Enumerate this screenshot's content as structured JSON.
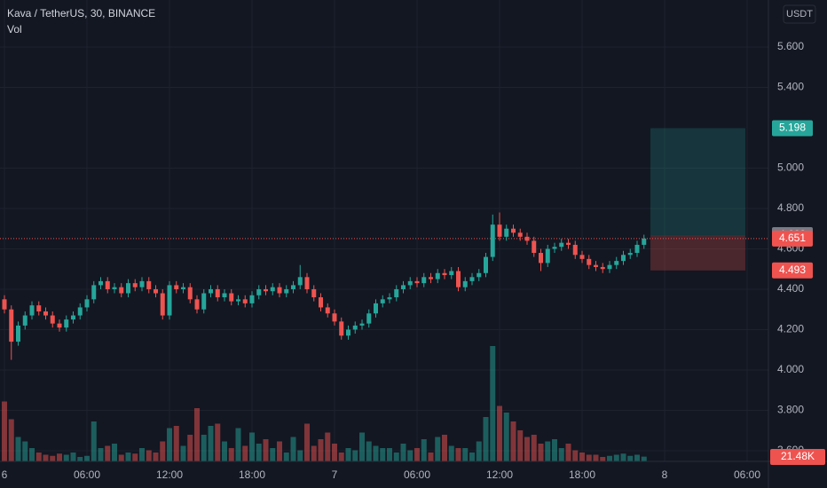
{
  "chart_data": {
    "type": "candlestick",
    "title": "Kava / TetherUS, 30, BINANCE",
    "indicator": "Vol",
    "currency": "USDT",
    "up_color": "#26a69a",
    "down_color": "#ef5350",
    "ylim": [
      3.547,
      5.833
    ],
    "yticks": [
      {
        "value": 3.6,
        "label": "3.600"
      },
      {
        "value": 3.8,
        "label": "3.800"
      },
      {
        "value": 4.0,
        "label": "4.000"
      },
      {
        "value": 4.2,
        "label": "4.200"
      },
      {
        "value": 4.4,
        "label": "4.400"
      },
      {
        "value": 4.6,
        "label": "4.600"
      },
      {
        "value": 4.8,
        "label": "4.800"
      },
      {
        "value": 5.0,
        "label": "5.000"
      },
      {
        "value": 5.4,
        "label": "5.400"
      },
      {
        "value": 5.6,
        "label": "5.600"
      }
    ],
    "xtick_labels": [
      "6",
      "06:00",
      "12:00",
      "18:00",
      "7",
      "06:00",
      "12:00",
      "18:00",
      "8",
      "06:00"
    ],
    "grid": true,
    "open": [
      4.35,
      4.3,
      4.14,
      4.22,
      4.27,
      4.32,
      4.29,
      4.27,
      4.23,
      4.21,
      4.25,
      4.27,
      4.31,
      4.35,
      4.42,
      4.44,
      4.4,
      4.41,
      4.38,
      4.43,
      4.41,
      4.44,
      4.4,
      4.38,
      4.27,
      4.42,
      4.4,
      4.41,
      4.35,
      4.3,
      4.38,
      4.4,
      4.36,
      4.38,
      4.34,
      4.35,
      4.33,
      4.37,
      4.4,
      4.39,
      4.41,
      4.38,
      4.4,
      4.42,
      4.46,
      4.4,
      4.36,
      4.31,
      4.28,
      4.24,
      4.17,
      4.2,
      4.22,
      4.23,
      4.28,
      4.33,
      4.35,
      4.36,
      4.4,
      4.42,
      4.44,
      4.43,
      4.46,
      4.45,
      4.48,
      4.47,
      4.49,
      4.41,
      4.44,
      4.46,
      4.48,
      4.56,
      4.72,
      4.66,
      4.7,
      4.68,
      4.66,
      4.64,
      4.58,
      4.53,
      4.6,
      4.61,
      4.63,
      4.62,
      4.57,
      4.55,
      4.52,
      4.51,
      4.5,
      4.52,
      4.54,
      4.57,
      4.58,
      4.62
    ],
    "high": [
      4.37,
      4.32,
      4.24,
      4.29,
      4.34,
      4.34,
      4.31,
      4.29,
      4.25,
      4.27,
      4.29,
      4.33,
      4.37,
      4.44,
      4.46,
      4.46,
      4.43,
      4.43,
      4.45,
      4.45,
      4.46,
      4.46,
      4.42,
      4.4,
      4.44,
      4.44,
      4.43,
      4.43,
      4.37,
      4.4,
      4.42,
      4.42,
      4.4,
      4.4,
      4.37,
      4.37,
      4.39,
      4.42,
      4.42,
      4.43,
      4.43,
      4.42,
      4.44,
      4.52,
      4.48,
      4.42,
      4.38,
      4.33,
      4.3,
      4.26,
      4.22,
      4.24,
      4.25,
      4.3,
      4.35,
      4.37,
      4.38,
      4.42,
      4.44,
      4.46,
      4.46,
      4.48,
      4.48,
      4.5,
      4.5,
      4.51,
      4.51,
      4.46,
      4.48,
      4.5,
      4.58,
      4.77,
      4.78,
      4.72,
      4.72,
      4.7,
      4.68,
      4.66,
      4.6,
      4.62,
      4.63,
      4.65,
      4.65,
      4.64,
      4.59,
      4.57,
      4.54,
      4.53,
      4.54,
      4.56,
      4.59,
      4.6,
      4.64,
      4.67
    ],
    "low": [
      4.28,
      4.05,
      4.12,
      4.2,
      4.25,
      4.27,
      4.25,
      4.21,
      4.19,
      4.19,
      4.23,
      4.25,
      4.29,
      4.33,
      4.4,
      4.38,
      4.38,
      4.36,
      4.36,
      4.39,
      4.39,
      4.38,
      4.36,
      4.25,
      4.25,
      4.38,
      4.38,
      4.33,
      4.28,
      4.28,
      4.36,
      4.34,
      4.34,
      4.32,
      4.32,
      4.31,
      4.31,
      4.35,
      4.37,
      4.37,
      4.36,
      4.36,
      4.38,
      4.4,
      4.38,
      4.34,
      4.29,
      4.26,
      4.22,
      4.15,
      4.15,
      4.18,
      4.2,
      4.21,
      4.26,
      4.31,
      4.33,
      4.34,
      4.38,
      4.4,
      4.41,
      4.41,
      4.43,
      4.43,
      4.45,
      4.45,
      4.39,
      4.39,
      4.42,
      4.44,
      4.46,
      4.54,
      4.64,
      4.64,
      4.66,
      4.64,
      4.62,
      4.56,
      4.49,
      4.51,
      4.58,
      4.59,
      4.6,
      4.55,
      4.53,
      4.5,
      4.49,
      4.48,
      4.48,
      4.5,
      4.52,
      4.55,
      4.56,
      4.6
    ],
    "close": [
      4.3,
      4.14,
      4.22,
      4.27,
      4.32,
      4.29,
      4.27,
      4.23,
      4.21,
      4.25,
      4.27,
      4.31,
      4.35,
      4.42,
      4.44,
      4.4,
      4.41,
      4.38,
      4.43,
      4.41,
      4.44,
      4.4,
      4.38,
      4.27,
      4.42,
      4.4,
      4.41,
      4.35,
      4.3,
      4.38,
      4.4,
      4.36,
      4.38,
      4.34,
      4.35,
      4.33,
      4.37,
      4.4,
      4.39,
      4.41,
      4.38,
      4.4,
      4.42,
      4.46,
      4.4,
      4.36,
      4.31,
      4.28,
      4.24,
      4.17,
      4.2,
      4.22,
      4.23,
      4.28,
      4.33,
      4.35,
      4.36,
      4.4,
      4.42,
      4.44,
      4.43,
      4.46,
      4.45,
      4.48,
      4.47,
      4.49,
      4.41,
      4.44,
      4.46,
      4.48,
      4.56,
      4.72,
      4.66,
      4.7,
      4.68,
      4.66,
      4.64,
      4.58,
      4.53,
      4.6,
      4.61,
      4.63,
      4.62,
      4.57,
      4.55,
      4.52,
      4.51,
      4.5,
      4.52,
      4.54,
      4.57,
      4.58,
      4.62,
      4.651
    ],
    "volume": [
      270,
      190,
      110,
      90,
      60,
      40,
      30,
      25,
      35,
      30,
      40,
      20,
      25,
      180,
      60,
      70,
      80,
      30,
      40,
      35,
      60,
      50,
      40,
      90,
      150,
      160,
      70,
      120,
      240,
      120,
      160,
      170,
      90,
      60,
      150,
      70,
      130,
      80,
      100,
      60,
      90,
      40,
      110,
      50,
      170,
      70,
      100,
      130,
      80,
      40,
      60,
      50,
      130,
      90,
      70,
      60,
      60,
      40,
      80,
      50,
      60,
      100,
      40,
      110,
      120,
      70,
      60,
      60,
      40,
      90,
      200,
      520,
      250,
      220,
      180,
      140,
      110,
      120,
      80,
      90,
      100,
      60,
      80,
      50,
      40,
      30,
      30,
      20,
      25,
      30,
      35,
      25,
      30,
      21.48
    ],
    "volume_label": "21.48K",
    "vlim": [
      0,
      600
    ],
    "position": {
      "target": 5.198,
      "entry": 4.668,
      "stop": 4.493
    },
    "last_price": 4.651
  }
}
